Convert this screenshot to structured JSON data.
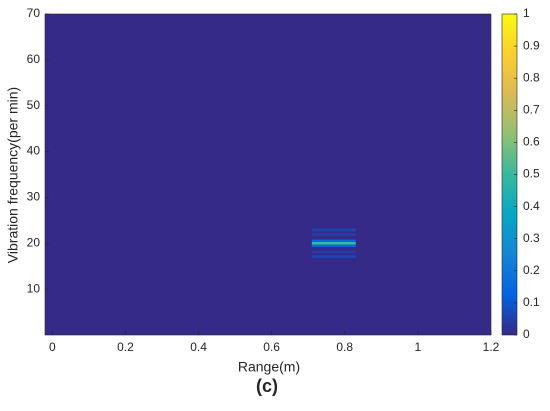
{
  "chart_data": {
    "type": "heatmap",
    "title": "(c)",
    "xlabel": "Range(m)",
    "ylabel": "Vibration frequency(per min)",
    "xlim": [
      -0.02,
      1.2
    ],
    "xticks": [
      0,
      0.2,
      0.4,
      0.6,
      0.8,
      1,
      1.2
    ],
    "ylim": [
      0,
      70
    ],
    "yticks": [
      10,
      20,
      30,
      40,
      50,
      60,
      70
    ],
    "fill_value": 0,
    "cells": [
      {
        "x": [
          0.71,
          0.83
        ],
        "y": [
          19.7,
          20.3
        ],
        "value": 0.5
      },
      {
        "x": [
          0.71,
          0.83
        ],
        "y": [
          20.3,
          20.8
        ],
        "value": 0.15
      },
      {
        "x": [
          0.71,
          0.83
        ],
        "y": [
          19.2,
          19.7
        ],
        "value": 0.15
      },
      {
        "x": [
          0.71,
          0.83
        ],
        "y": [
          22.6,
          23.2
        ],
        "value": 0.06
      },
      {
        "x": [
          0.71,
          0.83
        ],
        "y": [
          16.8,
          17.4
        ],
        "value": 0.06
      },
      {
        "x": [
          0.71,
          0.83
        ],
        "y": [
          21.6,
          22.2
        ],
        "value": 0.04
      },
      {
        "x": [
          0.71,
          0.83
        ],
        "y": [
          17.8,
          18.4
        ],
        "value": 0.04
      }
    ],
    "clim": [
      0,
      1
    ],
    "cticks": [
      0,
      0.1,
      0.2,
      0.3,
      0.4,
      0.5,
      0.6,
      0.7,
      0.8,
      0.9,
      1
    ],
    "colormap": [
      "#352a87",
      "#0363e1",
      "#1485d4",
      "#06a7c6",
      "#38b99e",
      "#92bf73",
      "#d9ba56",
      "#fcce2e",
      "#f9fb0e"
    ]
  }
}
